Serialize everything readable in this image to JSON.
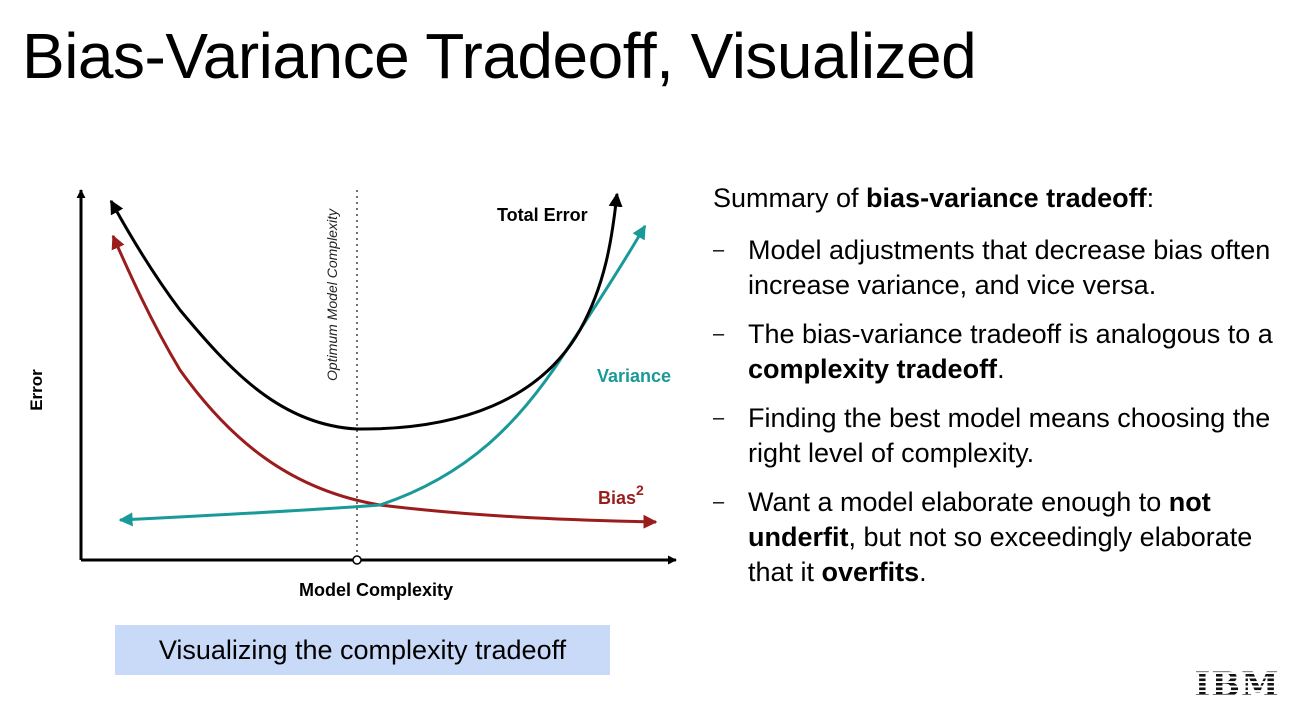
{
  "slide": {
    "title": "Bias-Variance Tradeoff, Visualized",
    "caption": "Visualizing the complexity tradeoff",
    "logo": "IBM"
  },
  "diagram": {
    "y_axis_label": "Error",
    "x_axis_label": "Model Complexity",
    "optimum_label": "Optimum Model Complexity",
    "curves": [
      {
        "id": "total-error",
        "label": "Total Error",
        "color": "#000000"
      },
      {
        "id": "variance",
        "label": "Variance",
        "color": "#1a9999"
      },
      {
        "id": "bias",
        "label": "Bias",
        "superscript": "2",
        "color": "#9b1c1c"
      }
    ]
  },
  "summary": {
    "heading_prefix": "Summary of ",
    "heading_bold": "bias-variance tradeoff",
    "heading_suffix": ":",
    "dash": "–",
    "items": [
      [
        {
          "t": "Model adjustments that decrease bias often increase variance, and vice versa."
        }
      ],
      [
        {
          "t": "The bias-variance tradeoff is analogous to a "
        },
        {
          "t": "complexity tradeoff",
          "b": true
        },
        {
          "t": "."
        }
      ],
      [
        {
          "t": "Finding the best model means choosing the right level of complexity."
        }
      ],
      [
        {
          "t": "Want a model elaborate enough to "
        },
        {
          "t": "not underfit",
          "b": true
        },
        {
          "t": ", but not so exceedingly elaborate that it "
        },
        {
          "t": "overfits",
          "b": true
        },
        {
          "t": "."
        }
      ]
    ]
  }
}
